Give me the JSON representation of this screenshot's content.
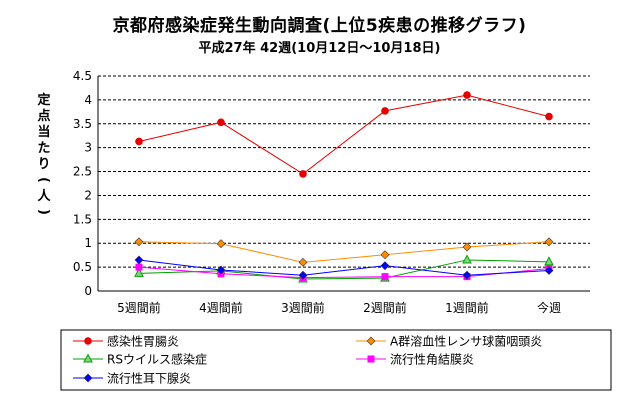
{
  "chart_data": {
    "type": "line",
    "title": "京都府感染症発生動向調査(上位5疾患の推移グラフ)",
    "subtitle": "平成27年 42週(10月12日〜10月18日)",
    "xlabel": "",
    "ylabel": "定点当たり(人)",
    "categories": [
      "5週間前",
      "4週間前",
      "3週間前",
      "2週間前",
      "1週間前",
      "今週"
    ],
    "ylim": [
      0,
      4.5
    ],
    "yticks": [
      "0",
      "0.5",
      "1",
      "1.5",
      "2",
      "2.5",
      "3",
      "3.5",
      "4",
      "4.5"
    ],
    "grid": "horizontal-dashed",
    "legend_position": "bottom",
    "series": [
      {
        "name": "感染性胃腸炎",
        "values": [
          3.13,
          3.53,
          2.45,
          3.77,
          4.1,
          3.65
        ],
        "color": "#e60000",
        "marker": "circle"
      },
      {
        "name": "A群溶血性レンサ球菌咽頭炎",
        "values": [
          1.03,
          0.99,
          0.6,
          0.76,
          0.92,
          1.03
        ],
        "color": "#ff8c00",
        "marker": "diamond"
      },
      {
        "name": "RSウイルス感染症",
        "values": [
          0.37,
          0.42,
          0.25,
          0.27,
          0.65,
          0.61
        ],
        "color": "#00a000",
        "marker": "triangle"
      },
      {
        "name": "流行性角結膜炎",
        "values": [
          0.5,
          0.36,
          0.28,
          0.3,
          0.3,
          0.47
        ],
        "color": "#ff00ff",
        "marker": "square"
      },
      {
        "name": "流行性耳下腺炎",
        "values": [
          0.65,
          0.44,
          0.33,
          0.53,
          0.33,
          0.43
        ],
        "color": "#0000ff",
        "marker": "diamond"
      }
    ]
  }
}
